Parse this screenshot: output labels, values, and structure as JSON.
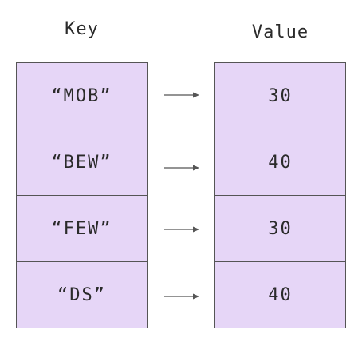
{
  "headers": {
    "key": "Key",
    "value": "Value"
  },
  "pairs": [
    {
      "key": "“MOB”",
      "value": "30"
    },
    {
      "key": "“BEW”",
      "value": "40"
    },
    {
      "key": "“FEW”",
      "value": "30"
    },
    {
      "key": "“DS”",
      "value": "40"
    }
  ],
  "colors": {
    "cell_fill": "#e6d6f7",
    "border": "#555555",
    "arrow": "#555555",
    "text": "#2b2b2b"
  },
  "icons": {
    "arrow": "right-arrow-icon"
  }
}
